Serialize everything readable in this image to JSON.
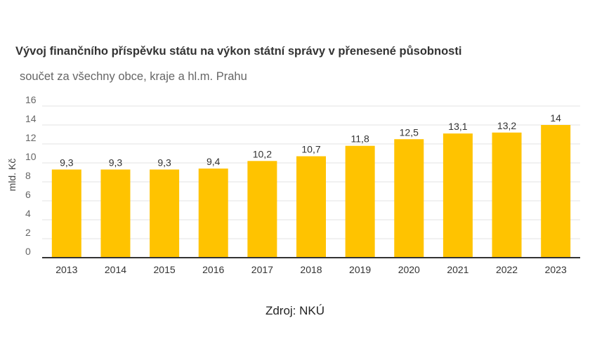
{
  "chart_data": {
    "type": "bar",
    "title": "Vývoj finančního příspěvku státu na výkon státní správy v přenesené působnosti",
    "subtitle": "součet za všechny obce, kraje a hl.m. Prahu",
    "ylabel": "mld. Kč",
    "xlabel": "",
    "categories": [
      "2013",
      "2014",
      "2015",
      "2016",
      "2017",
      "2018",
      "2019",
      "2020",
      "2021",
      "2022",
      "2023"
    ],
    "values": [
      9.3,
      9.3,
      9.3,
      9.4,
      10.2,
      10.7,
      11.8,
      12.5,
      13.1,
      13.2,
      14
    ],
    "value_labels": [
      "9,3",
      "9,3",
      "9,3",
      "9,4",
      "10,2",
      "10,7",
      "11,8",
      "12,5",
      "13,1",
      "13,2",
      "14"
    ],
    "ylim": [
      0,
      16
    ],
    "yticks": [
      0,
      2,
      4,
      6,
      8,
      10,
      12,
      14,
      16
    ],
    "grid": true,
    "bar_color": "#FFC300"
  },
  "source": "Zdroj: NKÚ"
}
